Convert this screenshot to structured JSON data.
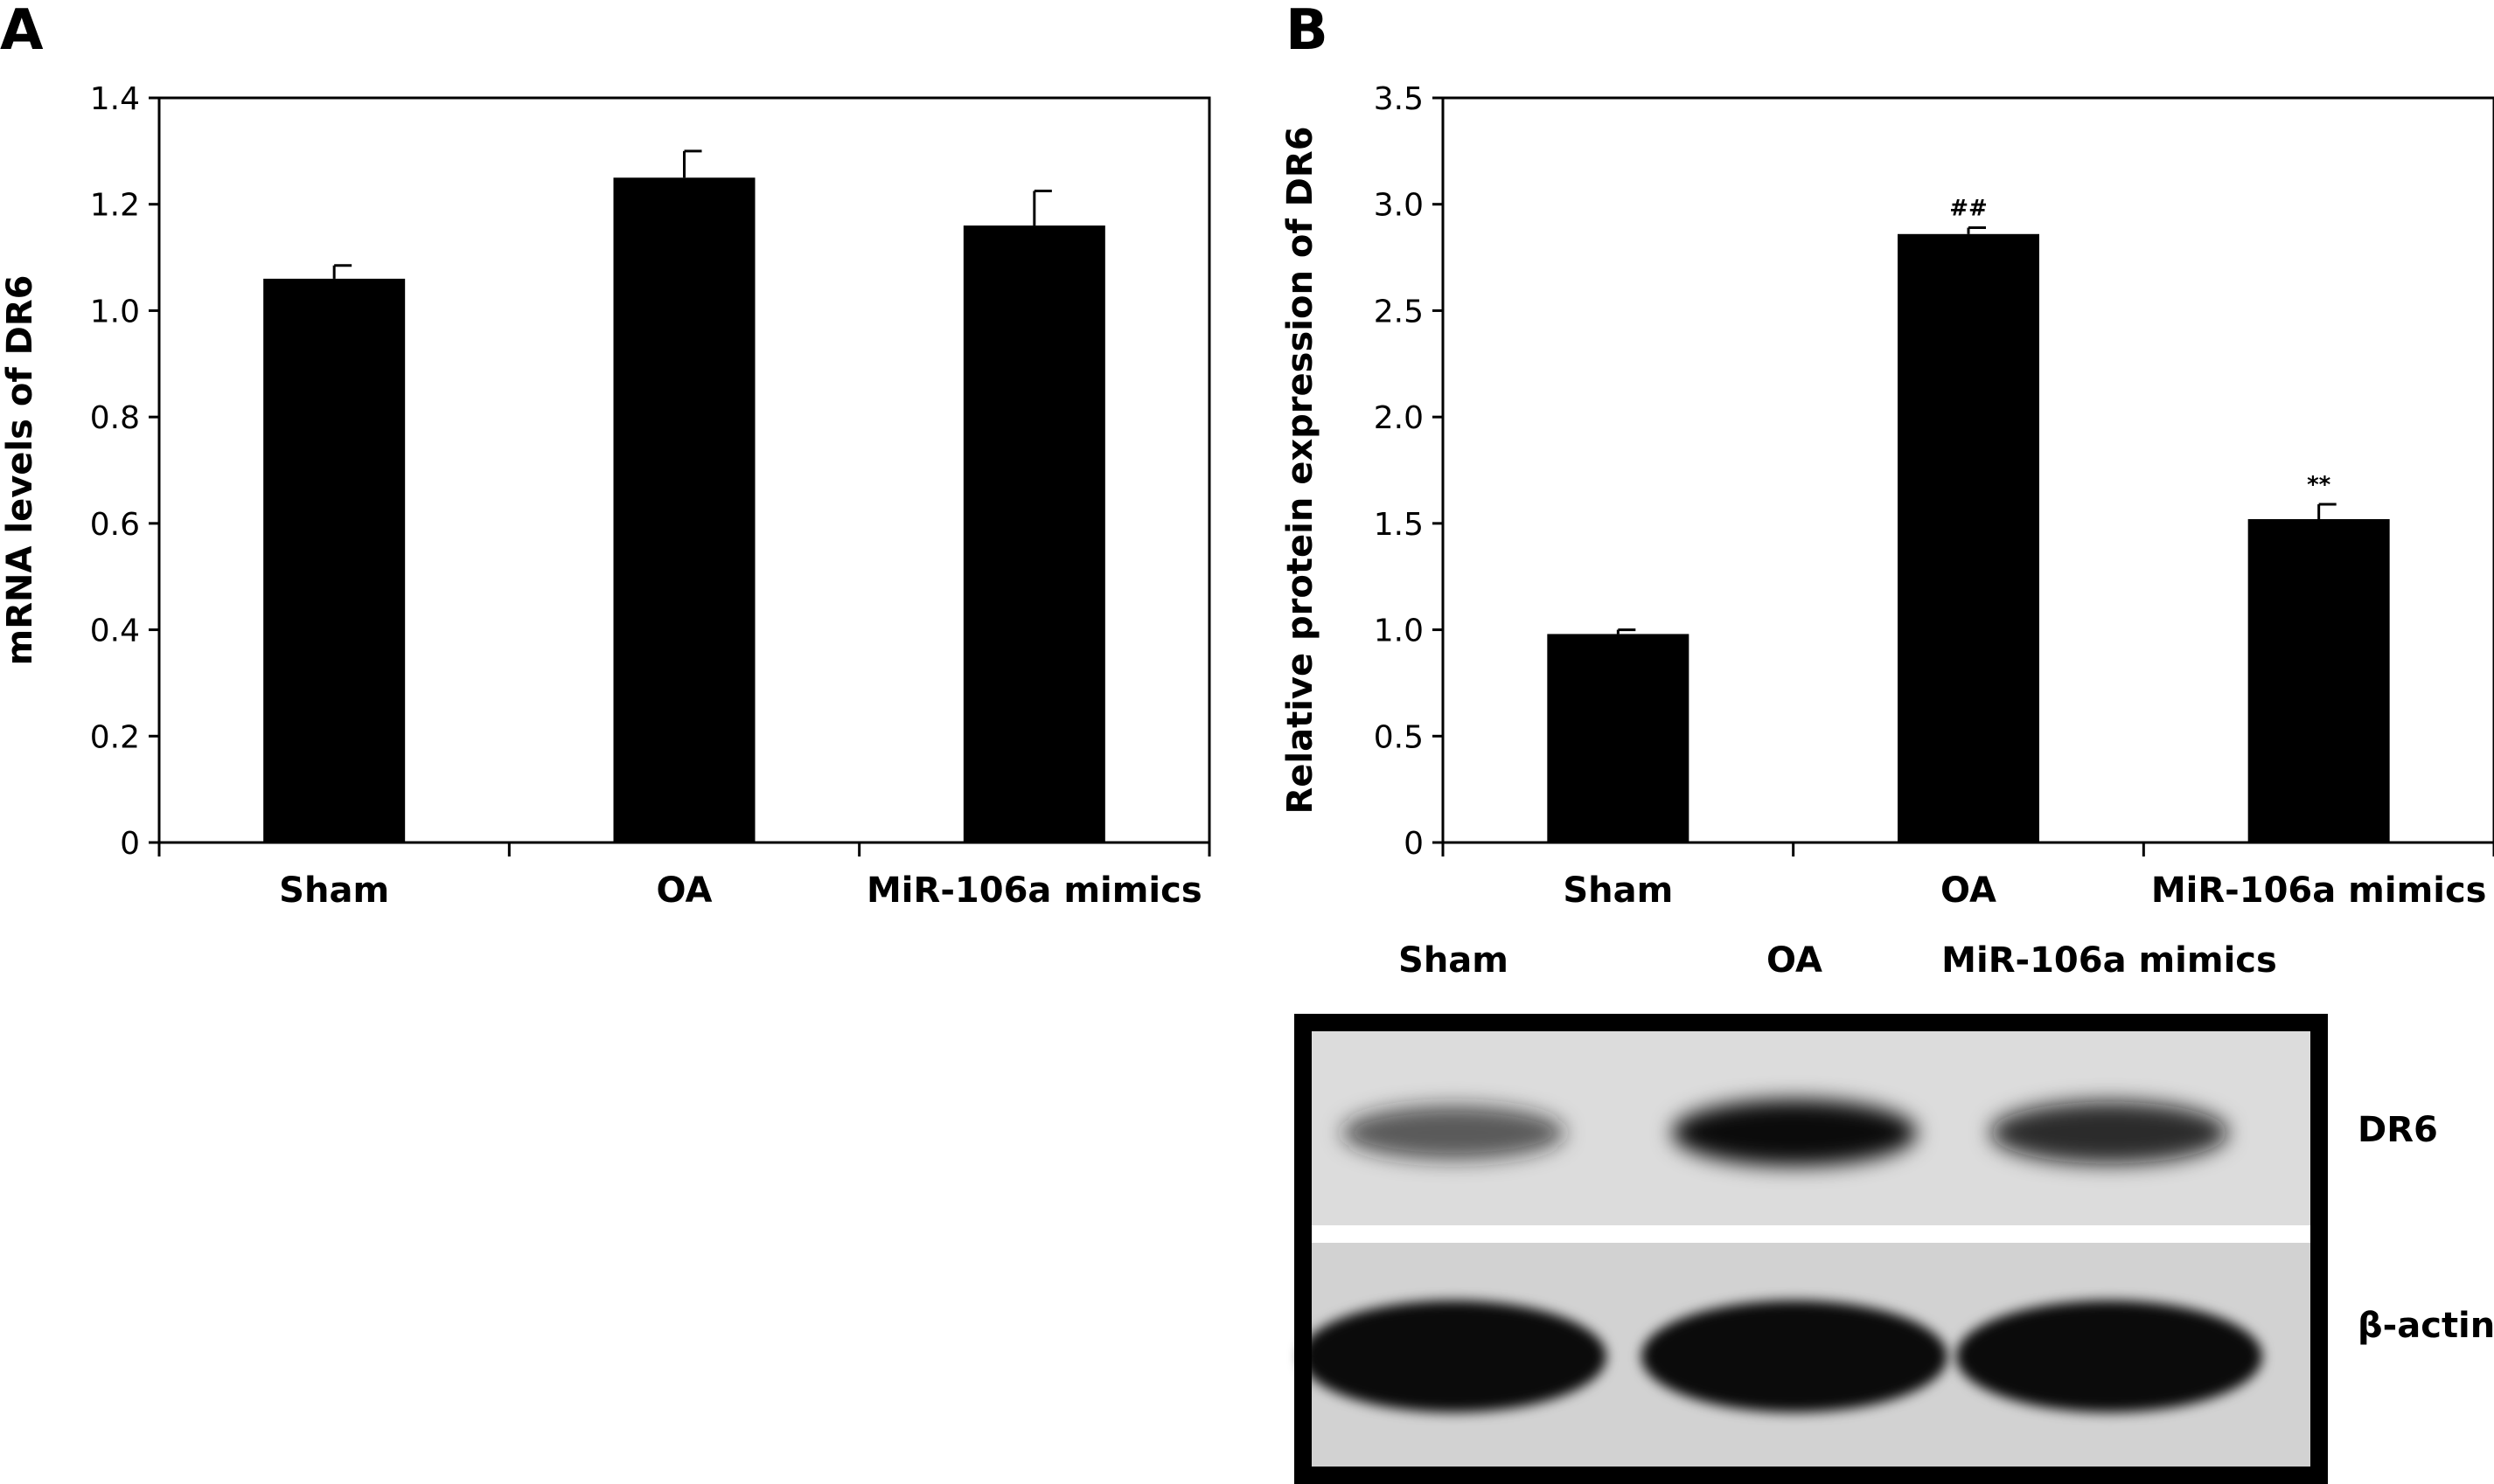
{
  "panel_a": {
    "letter": "A"
  },
  "panel_b": {
    "letter": "B"
  },
  "chart_data": [
    {
      "type": "bar",
      "categories": [
        "Sham",
        "OA",
        "MiR-106a mimics"
      ],
      "values": [
        1.06,
        1.25,
        1.16
      ],
      "errors": [
        0.025,
        0.05,
        0.065
      ],
      "ylabel": "mRNA levels of DR6",
      "ylim": [
        0,
        1.4
      ],
      "yticks": [
        "0",
        "0.2",
        "0.4",
        "0.6",
        "0.8",
        "1.0",
        "1.2",
        "1.4"
      ],
      "grid": false,
      "bar_color": "#000000"
    },
    {
      "type": "bar",
      "categories": [
        "Sham",
        "OA",
        "MiR-106a mimics"
      ],
      "values": [
        0.98,
        2.86,
        1.52
      ],
      "errors": [
        0.02,
        0.03,
        0.07
      ],
      "annotations": [
        "",
        "##",
        "**"
      ],
      "ylabel": "Relative protein expression of DR6",
      "ylim": [
        0,
        3.5
      ],
      "yticks": [
        "0",
        "0.5",
        "1.0",
        "1.5",
        "2.0",
        "2.5",
        "3.0",
        "3.5"
      ],
      "grid": false,
      "bar_color": "#000000"
    }
  ],
  "blot": {
    "lane_labels": [
      "Sham",
      "OA",
      "MiR-106a mimics"
    ],
    "bands": [
      {
        "label": "DR6",
        "intensity": [
          0.55,
          1.0,
          0.85
        ]
      },
      {
        "label": "β-actin",
        "intensity": [
          1.0,
          1.0,
          1.0
        ]
      }
    ]
  }
}
